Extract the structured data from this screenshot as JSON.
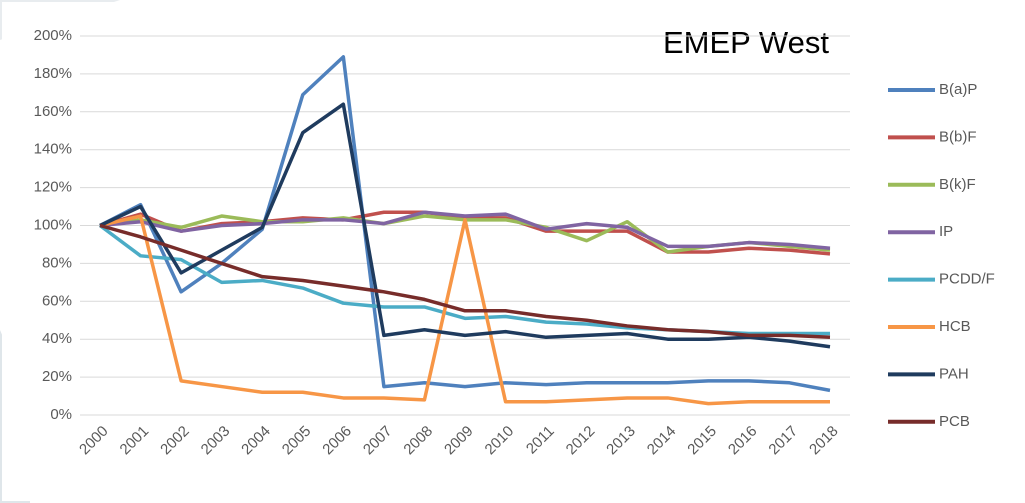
{
  "chart_data": {
    "type": "line",
    "title": "EMEP West",
    "categories": [
      "2000",
      "2001",
      "2002",
      "2003",
      "2004",
      "2005",
      "2006",
      "2007",
      "2008",
      "2009",
      "2010",
      "2011",
      "2012",
      "2013",
      "2014",
      "2015",
      "2016",
      "2017",
      "2018"
    ],
    "series": [
      {
        "name": "B(a)P",
        "color": "#4f81bd",
        "values": [
          100,
          111,
          65,
          80,
          98,
          169,
          189,
          15,
          17,
          15,
          17,
          16,
          17,
          17,
          17,
          18,
          18,
          17,
          13
        ]
      },
      {
        "name": "B(b)F",
        "color": "#c0504d",
        "values": [
          100,
          106,
          97,
          101,
          102,
          104,
          103,
          107,
          107,
          104,
          104,
          97,
          97,
          97,
          86,
          86,
          88,
          87,
          85
        ]
      },
      {
        "name": "B(k)F",
        "color": "#9bbb59",
        "values": [
          100,
          103,
          99,
          105,
          102,
          102,
          104,
          101,
          105,
          103,
          103,
          99,
          92,
          102,
          86,
          89,
          91,
          89,
          87
        ]
      },
      {
        "name": "IP",
        "color": "#8064a2",
        "values": [
          100,
          102,
          97,
          100,
          101,
          103,
          103,
          101,
          107,
          105,
          106,
          98,
          101,
          99,
          89,
          89,
          91,
          90,
          88
        ]
      },
      {
        "name": "PCDD/F",
        "color": "#4bacc6",
        "values": [
          100,
          84,
          82,
          70,
          71,
          67,
          59,
          57,
          57,
          51,
          52,
          49,
          48,
          46,
          45,
          44,
          43,
          43,
          43
        ]
      },
      {
        "name": "HCB",
        "color": "#f79646",
        "values": [
          100,
          105,
          18,
          15,
          12,
          12,
          9,
          9,
          8,
          103,
          7,
          7,
          8,
          9,
          9,
          6,
          7,
          7,
          7
        ]
      },
      {
        "name": "PAH",
        "color": "#1f3b5e",
        "values": [
          100,
          110,
          75,
          87,
          99,
          149,
          164,
          42,
          45,
          42,
          44,
          41,
          42,
          43,
          40,
          40,
          41,
          39,
          36
        ]
      },
      {
        "name": "PCB",
        "color": "#772c2a",
        "values": [
          100,
          94,
          87,
          80,
          73,
          71,
          68,
          65,
          61,
          55,
          55,
          52,
          50,
          47,
          45,
          44,
          42,
          42,
          41
        ]
      }
    ],
    "ylim": [
      0,
      200
    ],
    "yticks": [
      {
        "value": 0,
        "label": "0%"
      },
      {
        "value": 20,
        "label": "20%"
      },
      {
        "value": 40,
        "label": "40%"
      },
      {
        "value": 60,
        "label": "60%"
      },
      {
        "value": 80,
        "label": "80%"
      },
      {
        "value": 100,
        "label": "100%"
      },
      {
        "value": 120,
        "label": "120%"
      },
      {
        "value": 140,
        "label": "140%"
      },
      {
        "value": 160,
        "label": "160%"
      },
      {
        "value": 180,
        "label": "180%"
      },
      {
        "value": 200,
        "label": "200%"
      }
    ],
    "grid": true,
    "legend": "right"
  }
}
